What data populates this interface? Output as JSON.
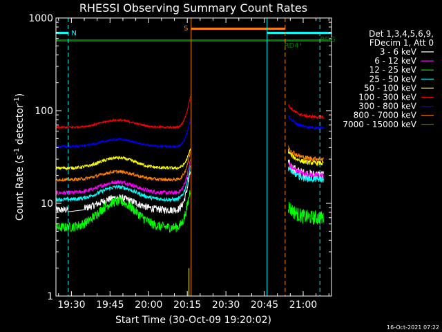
{
  "chart_data": {
    "type": "line",
    "title": "RHESSI Observing Summary Count Rates",
    "xlabel": "Start Time (30-Oct-09 19:20:02)",
    "ylabel_main": "Count Rate (s",
    "ylabel_sup1": "-1",
    "ylabel_mid": " detector",
    "ylabel_sup2": "-1",
    "ylabel_end": ")",
    "yscale": "log",
    "ylim": [
      1,
      1000
    ],
    "xlim_minutes": [
      -6.0,
      101.0
    ],
    "x_ticks": [
      {
        "m": 0,
        "label": "19:30"
      },
      {
        "m": 15,
        "label": "19:45"
      },
      {
        "m": 30,
        "label": "20:00"
      },
      {
        "m": 45,
        "label": "20:15"
      },
      {
        "m": 60,
        "label": "20:30"
      },
      {
        "m": 75,
        "label": "20:45"
      },
      {
        "m": 90,
        "label": "21:00"
      }
    ],
    "y_ticks": [
      {
        "v": 1,
        "label": "1"
      },
      {
        "v": 10,
        "label": "10"
      },
      {
        "v": 100,
        "label": "100"
      },
      {
        "v": 1000,
        "label": "1000"
      }
    ],
    "legend_header": [
      "Det 1,3,4,5,6,9,",
      "FDecim 1, Att 0"
    ],
    "series": [
      {
        "name": "3 - 6 keV",
        "color": "#ffffff",
        "base": 8.5,
        "hump": 3,
        "post": 20,
        "peak": 25,
        "noise": 0.09
      },
      {
        "name": "6 - 12 keV",
        "color": "#ff00ff",
        "base": 13,
        "hump": 4,
        "post": 20,
        "peak": 33,
        "noise": 0.05
      },
      {
        "name": "12 - 25 keV",
        "color": "#00ff00",
        "base": 5.5,
        "hump": 5,
        "post": 7,
        "peak": 16,
        "noise": 0.12
      },
      {
        "name": "25 - 50 keV",
        "color": "#00ffff",
        "base": 11,
        "hump": 4,
        "post": 18,
        "peak": 28,
        "noise": 0.05
      },
      {
        "name": "50 - 100 keV",
        "color": "#ffff00",
        "base": 24,
        "hump": 7,
        "post": 27,
        "peak": 42,
        "noise": 0.04
      },
      {
        "name": "100 - 300 keV",
        "color": "#ff0000",
        "base": 66,
        "hump": 13,
        "post": 85,
        "peak": 160,
        "noise": 0.025
      },
      {
        "name": "300 - 800 keV",
        "color": "#0000ff",
        "base": 41,
        "hump": 8,
        "post": 65,
        "peak": 90,
        "noise": 0.025
      },
      {
        "name": "800 - 7000 keV",
        "color": "#ff8000",
        "base": 18,
        "hump": 4,
        "post": 30,
        "peak": 40,
        "noise": 0.04
      },
      {
        "name": "7000 - 15000 keV",
        "color": "#808000",
        "base": 0,
        "hump": 0,
        "post": 0,
        "peak": 2,
        "noise": 0
      }
    ],
    "annotations": [
      {
        "label": "N",
        "color": "#00ffff"
      },
      {
        "label": "S",
        "color": "#ff8000"
      },
      {
        "label": "RD4",
        "color": "#008000"
      },
      {
        "label": "RDG",
        "color": "#008000"
      }
    ]
  },
  "footer": {
    "timestamp": "16-Oct-2021 07:22"
  }
}
